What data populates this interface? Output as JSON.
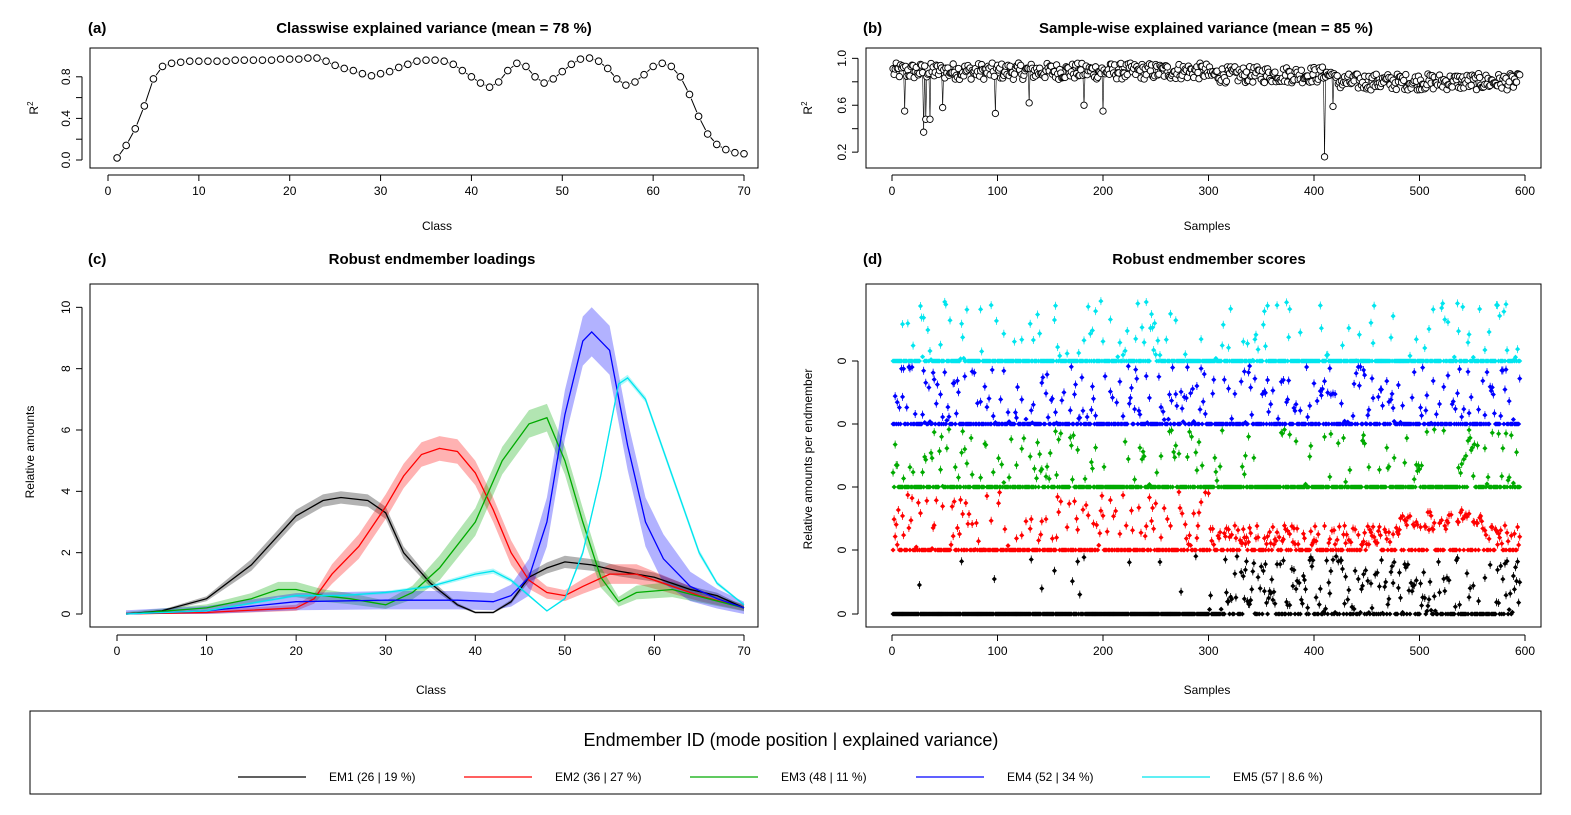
{
  "chart_data": [
    {
      "panel": "(a)",
      "type": "scatter",
      "title": "Classwise explained variance (mean = 78 %)",
      "xlabel": "Class",
      "ylabel": "R",
      "ylabel_sup": "2",
      "xlim": [
        0,
        70
      ],
      "ylim": [
        0,
        1
      ],
      "xticks": [
        0,
        10,
        20,
        30,
        40,
        50,
        60,
        70
      ],
      "yticks": [
        0.0,
        0.2,
        0.4,
        0.6,
        0.8
      ],
      "ytick_labels": [
        "0.0",
        "0.4",
        "0.8"
      ],
      "x": [
        1,
        2,
        3,
        4,
        5,
        6,
        7,
        8,
        9,
        10,
        11,
        12,
        13,
        14,
        15,
        16,
        17,
        18,
        19,
        20,
        21,
        22,
        23,
        24,
        25,
        26,
        27,
        28,
        29,
        30,
        31,
        32,
        33,
        34,
        35,
        36,
        37,
        38,
        39,
        40,
        41,
        42,
        43,
        44,
        45,
        46,
        47,
        48,
        49,
        50,
        51,
        52,
        53,
        54,
        55,
        56,
        57,
        58,
        59,
        60,
        61,
        62,
        63,
        64,
        65,
        66,
        67,
        68,
        69,
        70
      ],
      "values": [
        0.02,
        0.14,
        0.3,
        0.52,
        0.78,
        0.9,
        0.93,
        0.94,
        0.95,
        0.95,
        0.95,
        0.95,
        0.95,
        0.96,
        0.96,
        0.96,
        0.96,
        0.96,
        0.97,
        0.97,
        0.97,
        0.98,
        0.98,
        0.95,
        0.91,
        0.88,
        0.86,
        0.83,
        0.81,
        0.83,
        0.85,
        0.89,
        0.92,
        0.95,
        0.96,
        0.96,
        0.95,
        0.92,
        0.86,
        0.8,
        0.74,
        0.7,
        0.75,
        0.86,
        0.93,
        0.9,
        0.8,
        0.74,
        0.78,
        0.85,
        0.92,
        0.97,
        0.98,
        0.95,
        0.88,
        0.78,
        0.72,
        0.75,
        0.82,
        0.9,
        0.93,
        0.9,
        0.8,
        0.63,
        0.42,
        0.25,
        0.15,
        0.1,
        0.07,
        0.06
      ]
    },
    {
      "panel": "(b)",
      "type": "scatter",
      "title": "Sample-wise explained variance (mean = 85 %)",
      "xlabel": "Samples",
      "ylabel": "R",
      "ylabel_sup": "2",
      "xlim": [
        0,
        600
      ],
      "ylim": [
        0.15,
        1.02
      ],
      "xticks": [
        0,
        100,
        200,
        300,
        400,
        500,
        600
      ],
      "yticks": [
        0.2,
        0.4,
        0.6,
        0.8,
        1.0
      ],
      "ytick_labels": [
        "0.2",
        "0.6",
        "1.0"
      ],
      "n_samples": 595,
      "outliers": [
        {
          "x": 12,
          "y": 0.55
        },
        {
          "x": 30,
          "y": 0.37
        },
        {
          "x": 32,
          "y": 0.48
        },
        {
          "x": 36,
          "y": 0.48
        },
        {
          "x": 48,
          "y": 0.58
        },
        {
          "x": 98,
          "y": 0.53
        },
        {
          "x": 130,
          "y": 0.62
        },
        {
          "x": 182,
          "y": 0.6
        },
        {
          "x": 200,
          "y": 0.55
        },
        {
          "x": 410,
          "y": 0.16
        },
        {
          "x": 418,
          "y": 0.59
        }
      ]
    },
    {
      "panel": "(c)",
      "type": "line",
      "title": "Robust endmember loadings",
      "xlabel": "Class",
      "ylabel": "Relative amounts",
      "xlim": [
        0,
        70
      ],
      "ylim": [
        0,
        10.5
      ],
      "xticks": [
        0,
        10,
        20,
        30,
        40,
        50,
        60,
        70
      ],
      "yticks": [
        0,
        2,
        4,
        6,
        8,
        10
      ],
      "series": [
        {
          "name": "EM1",
          "color": "#000000",
          "points": [
            [
              1,
              0
            ],
            [
              5,
              0.1
            ],
            [
              10,
              0.5
            ],
            [
              15,
              1.6
            ],
            [
              20,
              3.2
            ],
            [
              23,
              3.7
            ],
            [
              25,
              3.8
            ],
            [
              28,
              3.7
            ],
            [
              30,
              3.3
            ],
            [
              32,
              2.0
            ],
            [
              35,
              1.0
            ],
            [
              38,
              0.3
            ],
            [
              40,
              0.05
            ],
            [
              42,
              0.05
            ],
            [
              44,
              0.4
            ],
            [
              46,
              1.2
            ],
            [
              48,
              1.5
            ],
            [
              50,
              1.7
            ],
            [
              53,
              1.6
            ],
            [
              56,
              1.4
            ],
            [
              60,
              1.2
            ],
            [
              64,
              0.8
            ],
            [
              67,
              0.6
            ],
            [
              70,
              0.2
            ]
          ],
          "band": 0.2
        },
        {
          "name": "EM2",
          "color": "#ff0000",
          "points": [
            [
              1,
              0
            ],
            [
              10,
              0.05
            ],
            [
              20,
              0.2
            ],
            [
              22,
              0.5
            ],
            [
              24,
              1.3
            ],
            [
              27,
              2.2
            ],
            [
              30,
              3.5
            ],
            [
              32,
              4.5
            ],
            [
              34,
              5.2
            ],
            [
              36,
              5.4
            ],
            [
              38,
              5.3
            ],
            [
              40,
              4.6
            ],
            [
              42,
              3.4
            ],
            [
              44,
              2.0
            ],
            [
              46,
              1.1
            ],
            [
              48,
              0.7
            ],
            [
              50,
              0.6
            ],
            [
              52,
              0.9
            ],
            [
              55,
              1.3
            ],
            [
              58,
              1.3
            ],
            [
              61,
              1.0
            ],
            [
              65,
              0.6
            ],
            [
              70,
              0.2
            ]
          ],
          "band": 0.4
        },
        {
          "name": "EM3",
          "color": "#00aa00",
          "points": [
            [
              1,
              0
            ],
            [
              10,
              0.2
            ],
            [
              15,
              0.5
            ],
            [
              18,
              0.8
            ],
            [
              20,
              0.8
            ],
            [
              23,
              0.6
            ],
            [
              26,
              0.5
            ],
            [
              30,
              0.3
            ],
            [
              33,
              0.7
            ],
            [
              36,
              1.5
            ],
            [
              40,
              3.0
            ],
            [
              43,
              5.0
            ],
            [
              46,
              6.2
            ],
            [
              48,
              6.4
            ],
            [
              50,
              5.0
            ],
            [
              52,
              3.0
            ],
            [
              54,
              1.2
            ],
            [
              56,
              0.4
            ],
            [
              58,
              0.7
            ],
            [
              62,
              0.8
            ],
            [
              66,
              0.5
            ],
            [
              70,
              0.2
            ]
          ],
          "band": 0.45
        },
        {
          "name": "EM4",
          "color": "#0000ff",
          "points": [
            [
              1,
              0
            ],
            [
              10,
              0.1
            ],
            [
              20,
              0.4
            ],
            [
              30,
              0.45
            ],
            [
              38,
              0.45
            ],
            [
              42,
              0.4
            ],
            [
              44,
              0.6
            ],
            [
              46,
              1.2
            ],
            [
              48,
              3.0
            ],
            [
              50,
              6.5
            ],
            [
              52,
              8.9
            ],
            [
              53,
              9.2
            ],
            [
              55,
              8.6
            ],
            [
              57,
              5.5
            ],
            [
              59,
              3.0
            ],
            [
              61,
              1.8
            ],
            [
              64,
              0.9
            ],
            [
              67,
              0.5
            ],
            [
              70,
              0.2
            ]
          ],
          "band": 0.8
        },
        {
          "name": "EM5",
          "color": "#00e5ee",
          "points": [
            [
              1,
              0
            ],
            [
              10,
              0.1
            ],
            [
              20,
              0.6
            ],
            [
              25,
              0.6
            ],
            [
              30,
              0.7
            ],
            [
              35,
              0.9
            ],
            [
              40,
              1.3
            ],
            [
              42,
              1.4
            ],
            [
              44,
              1.1
            ],
            [
              46,
              0.6
            ],
            [
              48,
              0.1
            ],
            [
              50,
              0.5
            ],
            [
              52,
              2.0
            ],
            [
              54,
              4.5
            ],
            [
              56,
              7.5
            ],
            [
              57,
              7.7
            ],
            [
              59,
              7.0
            ],
            [
              62,
              4.5
            ],
            [
              65,
              2.0
            ],
            [
              67,
              1.0
            ],
            [
              70,
              0.3
            ]
          ],
          "band": 0.1
        }
      ]
    },
    {
      "panel": "(d)",
      "type": "scatter",
      "title": "Robust endmember scores",
      "xlabel": "Samples",
      "ylabel": "Relative amounts per endmember",
      "xlim": [
        0,
        600
      ],
      "xticks": [
        0,
        100,
        200,
        300,
        400,
        500,
        600
      ],
      "ytick_labels": [
        "0",
        "0",
        "0",
        "0",
        "0"
      ],
      "series_order": [
        "EM1",
        "EM2",
        "EM3",
        "EM4",
        "EM5"
      ],
      "n_samples": 595
    }
  ],
  "legend": {
    "title": "Endmember ID (mode position | explained variance)",
    "items": [
      {
        "label": "EM1 (26 | 19 %)",
        "color": "#000000"
      },
      {
        "label": "EM2 (36 | 27 %)",
        "color": "#ff0000"
      },
      {
        "label": "EM3 (48 | 11 %)",
        "color": "#00aa00"
      },
      {
        "label": "EM4 (52 | 34 %)",
        "color": "#0000ff"
      },
      {
        "label": "EM5 (57 | 8.6 %)",
        "color": "#00e5ee"
      }
    ]
  }
}
